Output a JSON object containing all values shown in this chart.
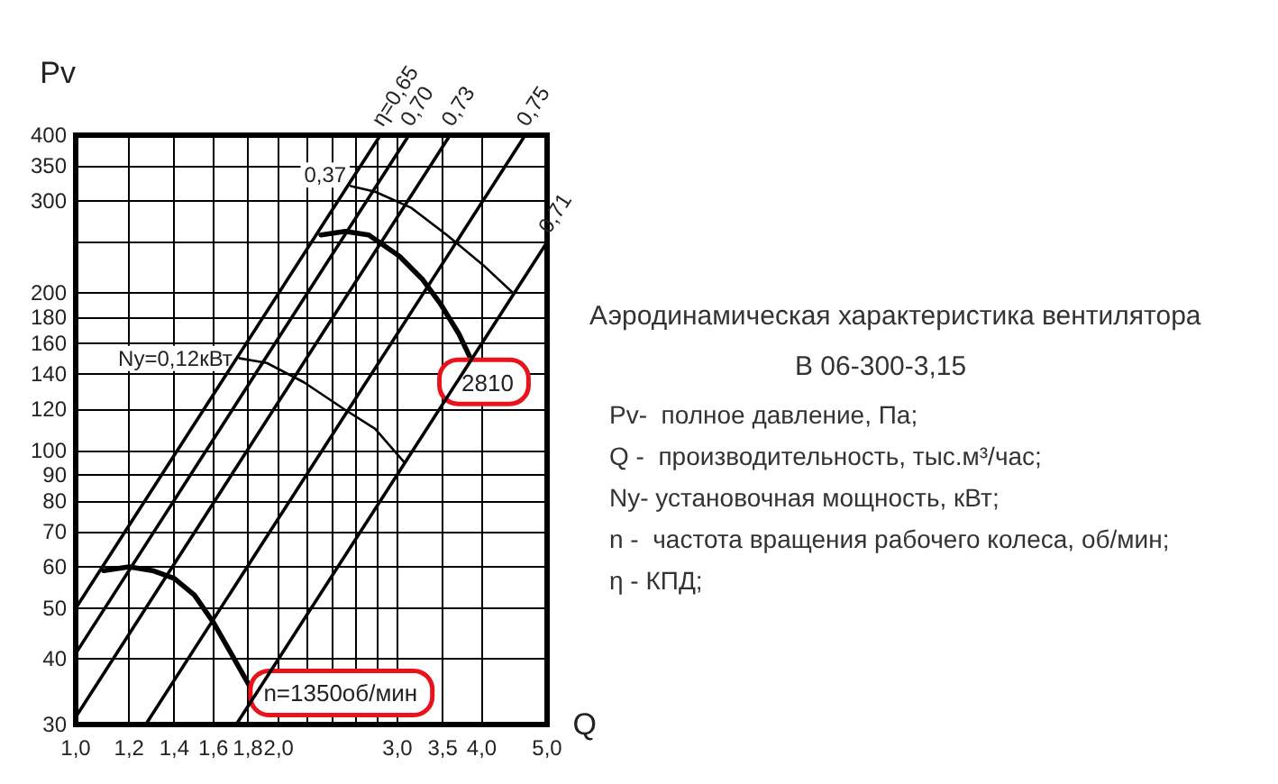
{
  "chart_data": {
    "type": "line",
    "title": "Аэродинамическая характеристика вентилятора",
    "subtitle": "В 06-300-3,15",
    "xlabel": "Q",
    "ylabel": "Pv",
    "log": "xy",
    "grid": true,
    "xlim": [
      1,
      5
    ],
    "xticks": [
      {
        "value": 1,
        "label": "1,0"
      },
      {
        "value": 1.2,
        "label": "1,2"
      },
      {
        "value": 1.4,
        "label": "1,4"
      },
      {
        "value": 1.6,
        "label": "1,6"
      },
      {
        "value": 1.8,
        "label": "1,8"
      },
      {
        "value": 2,
        "label": "2,0"
      },
      {
        "value": 2.2,
        "label": null
      },
      {
        "value": 2.4,
        "label": null
      },
      {
        "value": 2.6,
        "label": null
      },
      {
        "value": 2.8,
        "label": null
      },
      {
        "value": 3,
        "label": "3,0"
      },
      {
        "value": 3.5,
        "label": "3,5"
      },
      {
        "value": 4,
        "label": "4,0"
      },
      {
        "value": 5,
        "label": "5,0"
      }
    ],
    "ylim": [
      30,
      400
    ],
    "yticks": [
      30,
      40,
      50,
      60,
      70,
      80,
      90,
      100,
      120,
      140,
      160,
      180,
      200,
      {
        "value": 250,
        "label": null
      },
      300,
      350,
      400
    ],
    "series": [
      {
        "name": "Ny=0,12кВт",
        "color": "#000000",
        "x": [
          1.75,
          1.92,
          2.18,
          2.5,
          2.78,
          3.07
        ],
        "values": [
          150,
          147,
          135,
          120,
          110,
          95
        ]
      },
      {
        "name": "0,37",
        "color": "#000000",
        "x": [
          2.55,
          2.78,
          3.14,
          3.55,
          4.02,
          4.45
        ],
        "values": [
          320,
          312,
          291,
          258,
          226,
          200
        ]
      },
      {
        "name": "n=1350об/мин",
        "color": "#000000",
        "x": [
          1.1,
          1.2,
          1.3,
          1.4,
          1.5,
          1.6,
          1.7,
          1.8,
          1.83
        ],
        "values": [
          59,
          60,
          59,
          57,
          53,
          47,
          41,
          36,
          35
        ]
      },
      {
        "name": "2810",
        "color": "#000000",
        "x": [
          2.31,
          2.51,
          2.72,
          3.02,
          3.27,
          3.48,
          3.7,
          3.85
        ],
        "values": [
          258,
          262,
          258,
          235,
          212,
          190,
          167,
          150
        ]
      },
      {
        "name": "η=0,65",
        "color": "#000000",
        "x": [
          1,
          2.83
        ],
        "values": [
          50,
          400
        ]
      },
      {
        "name": "0,70",
        "color": "#000000",
        "x": [
          1,
          3.12
        ],
        "values": [
          41,
          400
        ]
      },
      {
        "name": "0,73",
        "color": "#000000",
        "x": [
          1,
          3.59
        ],
        "values": [
          31,
          400
        ]
      },
      {
        "name": "0,75",
        "color": "#000000",
        "x": [
          1.27,
          4.64
        ],
        "values": [
          30,
          400
        ]
      },
      {
        "name": "0,71",
        "color": "#000000",
        "x": [
          1.73,
          5
        ],
        "values": [
          30,
          250
        ]
      }
    ],
    "annotations": [
      "Pv-  полное давление, Па;",
      "Q -  производительность, тыс.м³/час;",
      "Ny- установочная мощность, кВт;",
      "n -  частота вращения рабочего колеса, об/мин;",
      "η - КПД;"
    ]
  }
}
